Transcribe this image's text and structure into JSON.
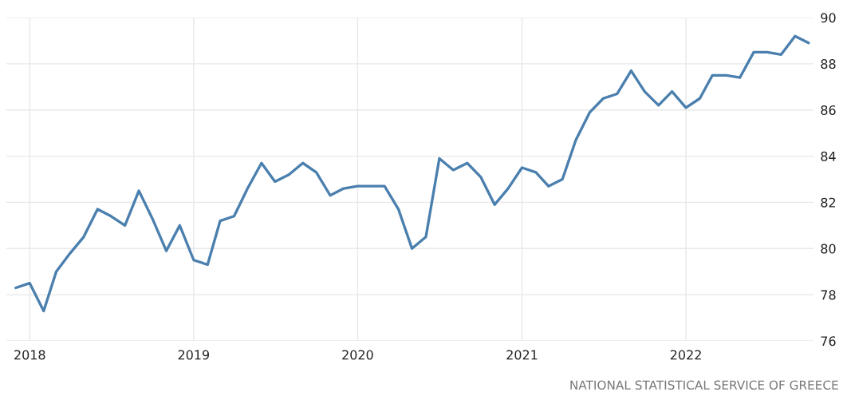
{
  "chart_data": {
    "type": "line",
    "x": [
      "2017-12",
      "2018-01",
      "2018-02",
      "2018-03",
      "2018-04",
      "2018-05",
      "2018-06",
      "2018-07",
      "2018-08",
      "2018-09",
      "2018-10",
      "2018-11",
      "2018-12",
      "2019-01",
      "2019-02",
      "2019-03",
      "2019-04",
      "2019-05",
      "2019-06",
      "2019-07",
      "2019-08",
      "2019-09",
      "2019-10",
      "2019-11",
      "2019-12",
      "2020-01",
      "2020-02",
      "2020-03",
      "2020-04",
      "2020-05",
      "2020-06",
      "2020-07",
      "2020-08",
      "2020-09",
      "2020-10",
      "2020-11",
      "2020-12",
      "2021-01",
      "2021-02",
      "2021-03",
      "2021-04",
      "2021-05",
      "2021-06",
      "2021-07",
      "2021-08",
      "2021-09",
      "2021-10",
      "2021-11",
      "2021-12",
      "2022-01",
      "2022-02",
      "2022-03",
      "2022-04",
      "2022-05",
      "2022-06",
      "2022-07",
      "2022-08",
      "2022-09",
      "2022-10"
    ],
    "series": [
      {
        "color": "#4a7fae",
        "values": [
          78.3,
          78.5,
          77.3,
          79.0,
          79.8,
          80.5,
          81.7,
          81.4,
          81.0,
          82.5,
          81.3,
          79.9,
          81.0,
          79.5,
          79.3,
          81.2,
          81.4,
          82.6,
          83.7,
          82.9,
          83.2,
          83.7,
          83.3,
          82.3,
          82.6,
          82.7,
          82.7,
          82.7,
          81.7,
          80.0,
          80.5,
          83.9,
          83.4,
          83.7,
          83.1,
          81.9,
          82.6,
          83.5,
          83.3,
          82.7,
          83.0,
          84.7,
          85.9,
          86.5,
          86.7,
          87.7,
          86.8,
          86.2,
          86.8,
          86.1,
          86.5,
          87.5,
          87.5,
          87.4,
          88.5,
          88.5,
          88.4,
          89.2,
          88.9
        ]
      }
    ],
    "xlim": [
      "2017-11-10",
      "2022-10-12"
    ],
    "xticks": [
      {
        "value": "2018",
        "label": "2018"
      },
      {
        "value": "2019",
        "label": "2019"
      },
      {
        "value": "2020",
        "label": "2020"
      },
      {
        "value": "2021",
        "label": "2021"
      },
      {
        "value": "2022",
        "label": "2022"
      }
    ],
    "ylim": [
      76,
      90
    ],
    "yticks": [
      76,
      78,
      80,
      82,
      84,
      86,
      88,
      90
    ],
    "grid": true,
    "legend": false,
    "annotations": [
      "NATIONAL STATISTICAL SERVICE OF GREECE"
    ]
  }
}
